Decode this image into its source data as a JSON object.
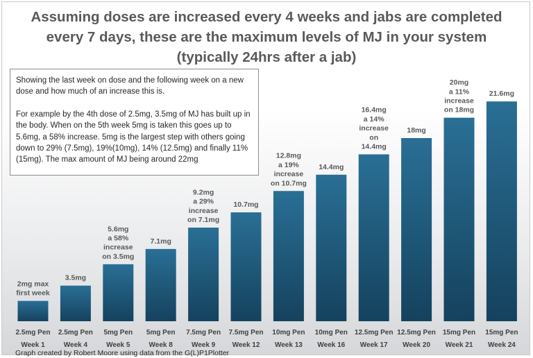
{
  "title": "Assuming doses are increased every 4 weeks and jabs are completed every 7 days, these are the maximum levels of MJ in your system (typically 24hrs after a jab)",
  "note": {
    "paragraph1": "Showing the last week on dose and the following week on a new dose and how much of an increase this is.",
    "paragraph2": "For example by the 4th dose of 2.5mg, 3.5mg of MJ has built up in the body. When on the 5th week 5mg is taken this goes up to 5.6mg, a 58% increase. 5mg is the largest step with others going down to 29% (7.5mg), 19%(10mg), 14% (12.5mg) and finally 11% (15mg). The max amount of MJ being around 22mg"
  },
  "credit": "Graph created by Robert Moore using data from the G(L)P1Plotter",
  "colors": {
    "bar_top": "#2a6f95",
    "bar_bottom": "#15425e",
    "label": "#595959",
    "axis_text": "#404040"
  },
  "chart_data": {
    "type": "bar",
    "categories": [
      "Week 1",
      "Week 4",
      "Week 5",
      "Week 8",
      "Week 9",
      "Week 12",
      "Week 13",
      "Week 16",
      "Week 17",
      "Week 20",
      "Week 21",
      "Week 24"
    ],
    "doses": [
      "2.5mg Pen",
      "2.5mg Pen",
      "5mg Pen",
      "5mg Pen",
      "7.5mg Pen",
      "7.5mg Pen",
      "10mg Pen",
      "10mg Pen",
      "12.5mg Pen",
      "12.5mg Pen",
      "15mg Pen",
      "15mg Pen"
    ],
    "values": [
      2,
      3.5,
      5.6,
      7.1,
      9.2,
      10.7,
      12.8,
      14.4,
      16.4,
      18,
      20,
      21.6
    ],
    "data_labels": [
      [
        "2mg max",
        "first week"
      ],
      [
        "3.5mg"
      ],
      [
        "5.6mg",
        "a 58%",
        "increase",
        "on 3.5mg"
      ],
      [
        "7.1mg"
      ],
      [
        "9.2mg",
        "a 29%",
        "increase",
        "on 7.1mg"
      ],
      [
        "10.7mg"
      ],
      [
        "12.8mg",
        "a 19%",
        "increase",
        "on 10.7mg"
      ],
      [
        "14.4mg"
      ],
      [
        "16.4mg",
        "a 14%",
        "increase",
        "on",
        "14.4mg"
      ],
      [
        "18mg"
      ],
      [
        "20mg",
        "a 11%",
        "increase",
        "on 18mg"
      ],
      [
        "21.6mg"
      ]
    ],
    "ylim": [
      0,
      22.5
    ],
    "grid": false,
    "legend": "none"
  }
}
